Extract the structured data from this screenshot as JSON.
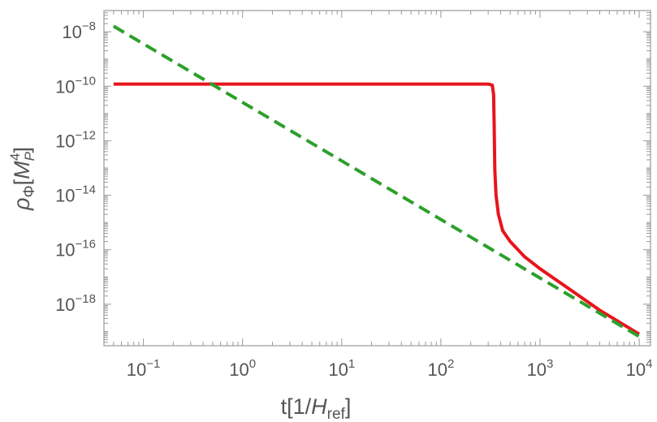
{
  "chart_data": {
    "type": "line",
    "title": "",
    "xscale": "log",
    "yscale": "log",
    "xlim": [
      0.04,
      13000
    ],
    "ylim": [
      3e-20,
      6e-08
    ],
    "grid": false,
    "xlabel": {
      "base": "t[1/",
      "var": "H",
      "sub": "ref",
      "close": "]"
    },
    "ylabel": {
      "var": "ρ",
      "sub": "Φ",
      "open": "[",
      "mvar": "M",
      "msub": "P",
      "msup": "4",
      "close": "]"
    },
    "x_ticks": [
      {
        "value": 0.1,
        "base": "10",
        "exp": "−1"
      },
      {
        "value": 1,
        "base": "10",
        "exp": "0"
      },
      {
        "value": 10,
        "base": "10",
        "exp": "1"
      },
      {
        "value": 100,
        "base": "10",
        "exp": "2"
      },
      {
        "value": 1000,
        "base": "10",
        "exp": "3"
      },
      {
        "value": 10000,
        "base": "10",
        "exp": "4"
      }
    ],
    "y_ticks": [
      {
        "value": 1e-08,
        "base": "10",
        "exp": "−8"
      },
      {
        "value": 1e-10,
        "base": "10",
        "exp": "−10"
      },
      {
        "value": 1e-12,
        "base": "10",
        "exp": "−12"
      },
      {
        "value": 1e-14,
        "base": "10",
        "exp": "−14"
      },
      {
        "value": 1e-16,
        "base": "10",
        "exp": "−16"
      },
      {
        "value": 1e-18,
        "base": "10",
        "exp": "−18"
      }
    ],
    "series": [
      {
        "color": "#e8141c",
        "style": "solid",
        "points": [
          [
            0.05,
            1.2e-10
          ],
          [
            1,
            1.2e-10
          ],
          [
            10,
            1.2e-10
          ],
          [
            100,
            1.2e-10
          ],
          [
            300,
            1.2e-10
          ],
          [
            330,
            1.1e-10
          ],
          [
            340,
            5e-11
          ],
          [
            345,
            3e-12
          ],
          [
            350,
            8e-14
          ],
          [
            360,
            1e-14
          ],
          [
            380,
            2e-15
          ],
          [
            420,
            5e-16
          ],
          [
            500,
            2e-16
          ],
          [
            700,
            5.5e-17
          ],
          [
            1000,
            2e-17
          ],
          [
            2000,
            3.5e-18
          ],
          [
            4000,
            6e-19
          ],
          [
            10000,
            8e-20
          ]
        ]
      },
      {
        "color": "#2ca02c",
        "style": "dashed",
        "points": [
          [
            0.05,
            1.6e-08
          ],
          [
            10000,
            6.5e-20
          ]
        ]
      }
    ]
  }
}
